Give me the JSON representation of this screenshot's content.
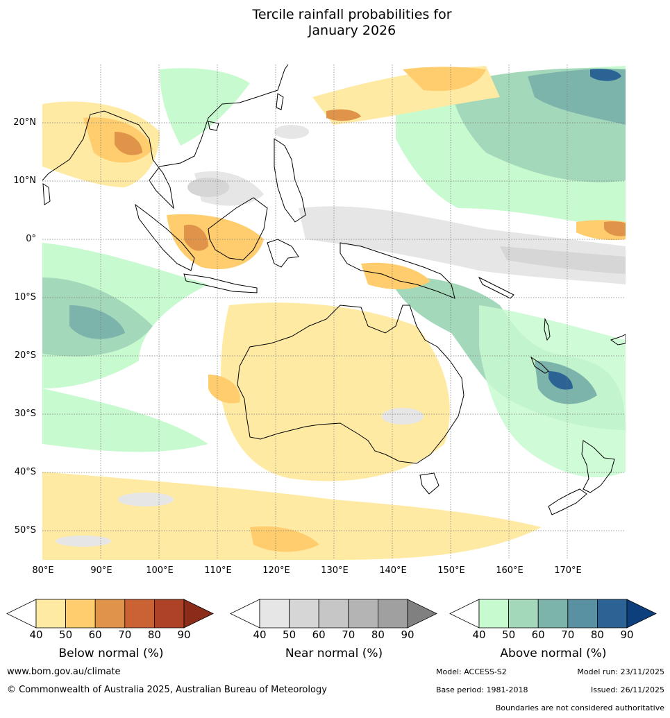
{
  "title_line1": "Tercile rainfall probabilities for",
  "title_line2": "January 2026",
  "map": {
    "lon_range": [
      80,
      180
    ],
    "lat_range": [
      -55,
      30
    ],
    "lat_labels": [
      "20°N",
      "10°N",
      "0°",
      "10°S",
      "20°S",
      "30°S",
      "40°S",
      "50°S"
    ],
    "lon_labels": [
      "80°E",
      "90°E",
      "100°E",
      "110°E",
      "120°E",
      "130°E",
      "140°E",
      "150°E",
      "160°E",
      "170°E"
    ]
  },
  "colorbars": {
    "below": {
      "title": "Below normal (%)",
      "ticks": [
        "40",
        "50",
        "60",
        "70",
        "80",
        "90"
      ],
      "colors": [
        "#ffffff",
        "#ffeaa4",
        "#ffcd6d",
        "#e0944a",
        "#cb6234",
        "#ad4226",
        "#8b2c1a"
      ]
    },
    "near": {
      "title": "Near normal (%)",
      "ticks": [
        "40",
        "50",
        "60",
        "70",
        "80",
        "90"
      ],
      "colors": [
        "#ffffff",
        "#e6e6e6",
        "#d6d6d6",
        "#c6c6c6",
        "#b4b4b4",
        "#a0a0a0",
        "#808080"
      ]
    },
    "above": {
      "title": "Above normal (%)",
      "ticks": [
        "40",
        "50",
        "60",
        "70",
        "80",
        "90"
      ],
      "colors": [
        "#ffffff",
        "#c8fad0",
        "#a4d8bb",
        "#7cb4ac",
        "#5a91a2",
        "#2b6494",
        "#0d3f7c"
      ]
    }
  },
  "footer": {
    "website": "www.bom.gov.au/climate",
    "copyright": "© Commonwealth of Australia 2025, Australian Bureau of Meteorology",
    "model": "Model: ACCESS-S2",
    "base_period": "Base period: 1981-2018",
    "model_run": "Model run: 23/11/2025",
    "issued": "Issued: 26/11/2025",
    "disclaimer": "Boundaries are not considered authoritative"
  }
}
